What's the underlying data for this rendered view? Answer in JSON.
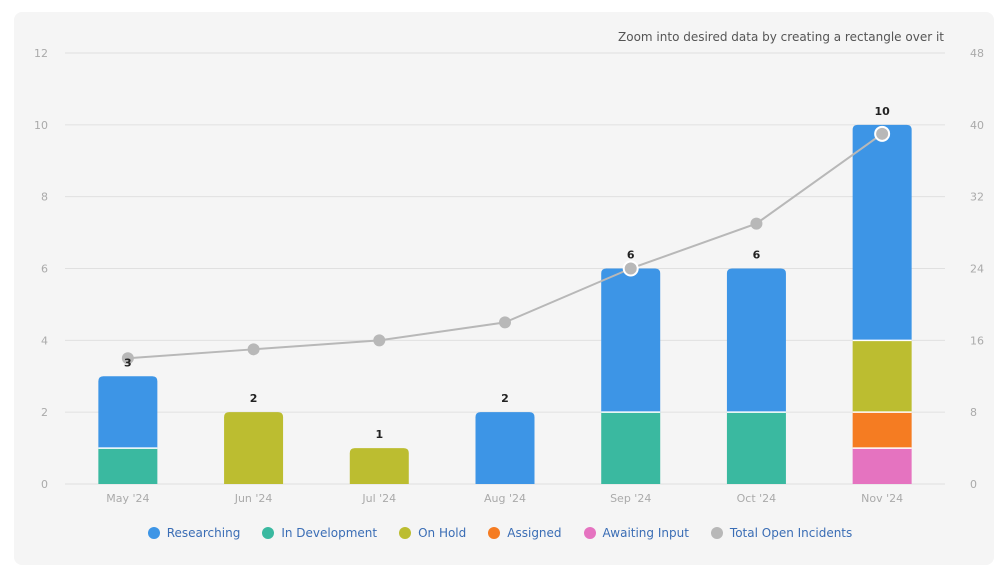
{
  "hint": "Zoom into desired data by creating a rectangle over it",
  "chart_data": {
    "type": "bar",
    "stacked": true,
    "categories": [
      "May '24",
      "Jun '24",
      "Jul '24",
      "Aug '24",
      "Sep '24",
      "Oct '24",
      "Nov '24"
    ],
    "series": [
      {
        "name": "Awaiting Input",
        "color": "#e573c0",
        "values": [
          0,
          0,
          0,
          0,
          0,
          0,
          1
        ]
      },
      {
        "name": "Assigned",
        "color": "#f57c22",
        "values": [
          0,
          0,
          0,
          0,
          0,
          0,
          1
        ]
      },
      {
        "name": "In Development",
        "color": "#3ab9a0",
        "values": [
          1,
          0,
          0,
          0,
          2,
          2,
          0
        ]
      },
      {
        "name": "On Hold",
        "color": "#bcbd30",
        "values": [
          0,
          2,
          1,
          0,
          0,
          0,
          2
        ]
      },
      {
        "name": "Researching",
        "color": "#3d95e6",
        "values": [
          2,
          0,
          0,
          2,
          4,
          4,
          6
        ]
      }
    ],
    "totals": [
      "3",
      "2",
      "1",
      "2",
      "6",
      "6",
      "10"
    ],
    "line_series": {
      "name": "Total Open Incidents",
      "color": "#b8b8b8",
      "axis": "right",
      "values": [
        14,
        15,
        16,
        18,
        24,
        29,
        39
      ]
    },
    "y_left": {
      "min": 0,
      "max": 12,
      "ticks": [
        "0",
        "2",
        "4",
        "6",
        "8",
        "10",
        "12"
      ]
    },
    "y_right": {
      "min": 0,
      "max": 48,
      "ticks": [
        "0",
        "8",
        "16",
        "24",
        "32",
        "40",
        "48"
      ]
    },
    "grid": true,
    "legend_position": "bottom"
  },
  "legend": [
    {
      "label": "Researching",
      "color": "#3d95e6"
    },
    {
      "label": "In Development",
      "color": "#3ab9a0"
    },
    {
      "label": "On Hold",
      "color": "#bcbd30"
    },
    {
      "label": "Assigned",
      "color": "#f57c22"
    },
    {
      "label": "Awaiting Input",
      "color": "#e573c0"
    },
    {
      "label": "Total Open Incidents",
      "color": "#b8b8b8"
    }
  ]
}
